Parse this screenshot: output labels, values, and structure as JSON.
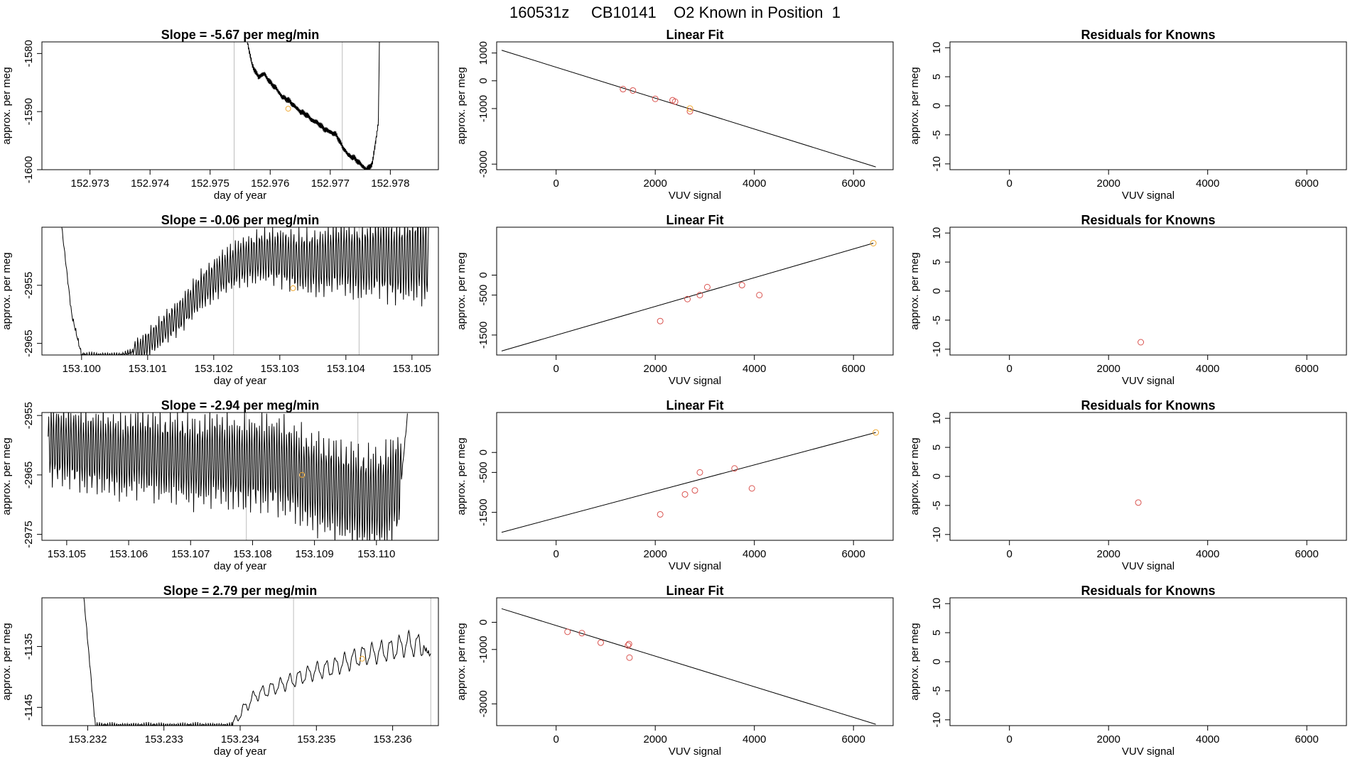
{
  "title": "160531z     CB10141    O2 Known in Position  1",
  "colors": {
    "line": "#000000",
    "frame": "#000000",
    "point": "#d9534f",
    "highlight": "#f0a830",
    "vline": "#bdbdbd"
  },
  "rows": [
    {
      "timeseries": {
        "title": "Slope =  -5.67  per meg/min",
        "xlabel": "day of year",
        "ylabel": "approx. per meg",
        "xlim": [
          152.9722,
          152.9788
        ],
        "ylim": [
          -1600,
          -1578
        ],
        "xticks": [
          152.973,
          152.974,
          152.975,
          152.976,
          152.977,
          152.978
        ],
        "xtick_labels": [
          "152.973",
          "152.974",
          "152.975",
          "152.976",
          "152.977",
          "152.978"
        ],
        "yticks": [
          -1580,
          -1590,
          -1600
        ],
        "ytick_labels": [
          "-1580",
          "-1590",
          "-1600"
        ],
        "vlines": [
          152.9754,
          152.9772
        ],
        "highlight": [
          152.9763,
          -1589.5
        ],
        "series": {
          "x": [
            152.9756,
            152.9757,
            152.9758,
            152.9759,
            152.976,
            152.9761,
            152.9762,
            152.9763,
            152.9764,
            152.9765,
            152.9766,
            152.9767,
            152.9768,
            152.9769,
            152.977,
            152.9771,
            152.9772,
            152.9773,
            152.9774,
            152.9775,
            152.9776,
            152.9777,
            152.9778,
            152.97782
          ],
          "y": [
            -1577,
            -1582,
            -1584,
            -1583.5,
            -1585,
            -1586,
            -1587.5,
            -1588,
            -1589,
            -1590,
            -1590.5,
            -1591.5,
            -1592,
            -1593,
            -1593.5,
            -1594,
            -1596,
            -1597.5,
            -1598,
            -1599,
            -1600,
            -1599,
            -1592,
            -1577
          ]
        }
      },
      "linear_fit": {
        "title": "Linear Fit",
        "xlabel": "VUV signal",
        "ylabel": "approx. per meg",
        "xlim": [
          -1200,
          6800
        ],
        "ylim": [
          -3200,
          1400
        ],
        "xticks": [
          0,
          2000,
          4000,
          6000
        ],
        "xtick_labels": [
          "0",
          "2000",
          "4000",
          "6000"
        ],
        "yticks": [
          1000,
          0,
          -1000,
          -3000
        ],
        "ytick_labels": [
          "1000",
          "0",
          "-1000",
          "-3000"
        ],
        "line": [
          [
            -1100,
            1100
          ],
          [
            6450,
            -3100
          ]
        ],
        "points": [
          [
            1350,
            -300
          ],
          [
            1550,
            -350
          ],
          [
            2000,
            -650
          ],
          [
            2350,
            -700
          ],
          [
            2400,
            -750
          ],
          [
            2700,
            -1100
          ]
        ],
        "highlight_points": [
          [
            2700,
            -1000
          ]
        ]
      },
      "residuals": {
        "title": "Residuals for Knowns",
        "xlabel": "VUV signal",
        "ylabel": "approx. per meg",
        "xlim": [
          -1200,
          6800
        ],
        "ylim": [
          -11,
          11
        ],
        "xticks": [
          0,
          2000,
          4000,
          6000
        ],
        "xtick_labels": [
          "0",
          "2000",
          "4000",
          "6000"
        ],
        "yticks": [
          10,
          5,
          0,
          -5,
          -10
        ],
        "ytick_labels": [
          "10",
          "5",
          "0",
          "-5",
          "-10"
        ],
        "points": []
      }
    },
    {
      "timeseries": {
        "title": "Slope =  -0.06  per meg/min",
        "xlabel": "day of year",
        "ylabel": "approx. per meg",
        "xlim": [
          153.0994,
          153.1054
        ],
        "ylim": [
          -2967,
          -2945
        ],
        "xticks": [
          153.1,
          153.101,
          153.102,
          153.103,
          153.104,
          153.105
        ],
        "xtick_labels": [
          "153.100",
          "153.101",
          "153.102",
          "153.103",
          "153.104",
          "153.105"
        ],
        "yticks": [
          -2955,
          -2965
        ],
        "ytick_labels": [
          "-2955",
          "-2965"
        ],
        "vlines": [
          153.1023,
          153.1042
        ],
        "highlight": [
          153.1032,
          -2955.5
        ],
        "series": {
          "x": [
            153.0997,
            153.09985,
            153.1,
            153.1003,
            153.1006,
            153.1009,
            153.1012,
            153.1015,
            153.1018,
            153.1021,
            153.1024,
            153.1027,
            153.103,
            153.1033,
            153.1036,
            153.1039,
            153.1042,
            153.1045,
            153.1048,
            153.1051,
            153.10525
          ],
          "y": [
            -2945,
            -2960,
            -2967,
            -2967,
            -2967,
            -2966,
            -2963,
            -2960,
            -2956,
            -2953,
            -2951,
            -2950,
            -2950,
            -2951,
            -2951,
            -2950,
            -2951,
            -2950,
            -2951,
            -2950,
            -2951
          ]
        },
        "oscillation": {
          "start": 153.1008,
          "end": 153.10525,
          "period": 4e-05,
          "amp_start": 2,
          "amp_end": 7
        }
      },
      "linear_fit": {
        "title": "Linear Fit",
        "xlabel": "VUV signal",
        "ylabel": "approx. per meg",
        "xlim": [
          -1200,
          6800
        ],
        "ylim": [
          -2000,
          1200
        ],
        "xticks": [
          0,
          2000,
          4000,
          6000
        ],
        "xtick_labels": [
          "0",
          "2000",
          "4000",
          "6000"
        ],
        "yticks": [
          0,
          -500,
          -1500
        ],
        "ytick_labels": [
          "0",
          "-500",
          "-1500"
        ],
        "line": [
          [
            -1100,
            -1900
          ],
          [
            6400,
            800
          ]
        ],
        "points": [
          [
            2100,
            -1150
          ],
          [
            2650,
            -600
          ],
          [
            2900,
            -500
          ],
          [
            3050,
            -300
          ],
          [
            3750,
            -250
          ],
          [
            4100,
            -500
          ]
        ],
        "highlight_points": [
          [
            6400,
            800
          ]
        ]
      },
      "residuals": {
        "title": "Residuals for Knowns",
        "xlabel": "VUV signal",
        "ylabel": "approx. per meg",
        "xlim": [
          -1200,
          6800
        ],
        "ylim": [
          -11,
          11
        ],
        "xticks": [
          0,
          2000,
          4000,
          6000
        ],
        "xtick_labels": [
          "0",
          "2000",
          "4000",
          "6000"
        ],
        "yticks": [
          10,
          5,
          0,
          -5,
          -10
        ],
        "ytick_labels": [
          "10",
          "5",
          "0",
          "-5",
          "-10"
        ],
        "points": [
          [
            2650,
            -8.8
          ]
        ]
      }
    },
    {
      "timeseries": {
        "title": "Slope =  -2.94  per meg/min",
        "xlabel": "day of year",
        "ylabel": "approx. per meg",
        "xlim": [
          153.1046,
          153.111
        ],
        "ylim": [
          -2976,
          -2954.5
        ],
        "xticks": [
          153.105,
          153.106,
          153.107,
          153.108,
          153.109,
          153.11
        ],
        "xtick_labels": [
          "153.105",
          "153.106",
          "153.107",
          "153.108",
          "153.109",
          "153.110"
        ],
        "yticks": [
          -2955,
          -2965,
          -2975
        ],
        "ytick_labels": [
          "-2955",
          "-2965",
          "-2975"
        ],
        "vlines": [
          153.1079,
          153.1097
        ],
        "highlight": [
          153.1088,
          -2965
        ],
        "series": {
          "x": [
            153.1047,
            153.105,
            153.1053,
            153.1056,
            153.1059,
            153.1062,
            153.1065,
            153.1068,
            153.1071,
            153.1074,
            153.1077,
            153.108,
            153.1083,
            153.1086,
            153.1089,
            153.1092,
            153.1095,
            153.1098,
            153.1101,
            153.1104,
            153.1105
          ],
          "y": [
            -2960,
            -2960,
            -2961,
            -2961,
            -2962,
            -2961,
            -2962,
            -2962,
            -2963,
            -2962,
            -2963,
            -2963,
            -2963,
            -2964,
            -2966,
            -2967,
            -2968,
            -2969,
            -2969,
            -2966,
            -2955
          ]
        },
        "oscillation": {
          "start": 153.1047,
          "end": 153.1104,
          "period": 4e-05,
          "amp_start": 6,
          "amp_end": 8
        }
      },
      "linear_fit": {
        "title": "Linear Fit",
        "xlabel": "VUV signal",
        "ylabel": "approx. per meg",
        "xlim": [
          -1200,
          6800
        ],
        "ylim": [
          -2200,
          1000
        ],
        "xticks": [
          0,
          2000,
          4000,
          6000
        ],
        "xtick_labels": [
          "0",
          "2000",
          "4000",
          "6000"
        ],
        "yticks": [
          0,
          -500,
          -1500
        ],
        "ytick_labels": [
          "0",
          "-500",
          "-1500"
        ],
        "line": [
          [
            -1100,
            -2000
          ],
          [
            6450,
            500
          ]
        ],
        "points": [
          [
            2100,
            -1550
          ],
          [
            2600,
            -1050
          ],
          [
            2800,
            -950
          ],
          [
            2900,
            -500
          ],
          [
            3600,
            -400
          ],
          [
            3950,
            -900
          ]
        ],
        "highlight_points": [
          [
            6450,
            500
          ]
        ]
      },
      "residuals": {
        "title": "Residuals for Knowns",
        "xlabel": "VUV signal",
        "ylabel": "approx. per meg",
        "xlim": [
          -1200,
          6800
        ],
        "ylim": [
          -11,
          11
        ],
        "xticks": [
          0,
          2000,
          4000,
          6000
        ],
        "xtick_labels": [
          "0",
          "2000",
          "4000",
          "6000"
        ],
        "yticks": [
          10,
          5,
          0,
          -5,
          -10
        ],
        "ytick_labels": [
          "10",
          "5",
          "0",
          "-5",
          "-10"
        ],
        "points": [
          [
            2600,
            -4.5
          ]
        ]
      }
    },
    {
      "timeseries": {
        "title": "Slope =  2.79  per meg/min",
        "xlabel": "day of year",
        "ylabel": "approx. per meg",
        "xlim": [
          153.2314,
          153.2366
        ],
        "ylim": [
          -1148,
          -1127
        ],
        "xticks": [
          153.232,
          153.233,
          153.234,
          153.235,
          153.236
        ],
        "xtick_labels": [
          "153.232",
          "153.233",
          "153.234",
          "153.235",
          "153.236"
        ],
        "yticks": [
          -1135,
          -1145
        ],
        "ytick_labels": [
          "-1135",
          "-1145"
        ],
        "vlines": [
          153.2347,
          153.2365
        ],
        "highlight": [
          153.2356,
          -1137
        ],
        "series": {
          "x": [
            153.23195,
            153.2321,
            153.2339,
            153.234,
            153.2342,
            153.2344,
            153.2346,
            153.2348,
            153.235,
            153.2352,
            153.2354,
            153.2356,
            153.2358,
            153.236,
            153.2362,
            153.2364,
            153.2365
          ],
          "y": [
            -1127,
            -1148,
            -1148,
            -1146,
            -1143,
            -1142,
            -1141,
            -1140,
            -1139,
            -1138.5,
            -1137.5,
            -1136.5,
            -1136,
            -1135.5,
            -1134.5,
            -1135,
            -1136.5
          ]
        },
        "oscillation": {
          "start": 153.2339,
          "end": 153.2364,
          "period": 0.00012,
          "amp_start": 0.8,
          "amp_end": 1.8
        }
      },
      "linear_fit": {
        "title": "Linear Fit",
        "xlabel": "VUV signal",
        "ylabel": "approx. per meg",
        "xlim": [
          -1200,
          6800
        ],
        "ylim": [
          -3800,
          900
        ],
        "xticks": [
          0,
          2000,
          4000,
          6000
        ],
        "xtick_labels": [
          "0",
          "2000",
          "4000",
          "6000"
        ],
        "yticks": [
          0,
          -1000,
          -3000
        ],
        "ytick_labels": [
          "0",
          "-1000",
          "-3000"
        ],
        "line": [
          [
            -1100,
            500
          ],
          [
            6450,
            -3750
          ]
        ],
        "points": [
          [
            230,
            -350
          ],
          [
            520,
            -400
          ],
          [
            900,
            -750
          ],
          [
            1450,
            -850
          ],
          [
            1470,
            -800
          ],
          [
            1480,
            -1300
          ]
        ],
        "highlight_points": []
      },
      "residuals": {
        "title": "Residuals for Knowns",
        "xlabel": "VUV signal",
        "ylabel": "approx. per meg",
        "xlim": [
          -1200,
          6800
        ],
        "ylim": [
          -11,
          11
        ],
        "xticks": [
          0,
          2000,
          4000,
          6000
        ],
        "xtick_labels": [
          "0",
          "2000",
          "4000",
          "6000"
        ],
        "yticks": [
          10,
          5,
          0,
          -5,
          -10
        ],
        "ytick_labels": [
          "10",
          "5",
          "0",
          "-5",
          "-10"
        ],
        "points": []
      }
    }
  ],
  "chart_data": [
    {
      "type": "line",
      "title": "Slope =  -5.67  per meg/min",
      "xlabel": "day of year",
      "ylabel": "approx. per meg",
      "xlim": [
        152.9722,
        152.9788
      ],
      "ylim": [
        -1600,
        -1578
      ]
    },
    {
      "type": "scatter",
      "title": "Linear Fit",
      "xlabel": "VUV signal",
      "ylabel": "approx. per meg",
      "xlim": [
        -1200,
        6800
      ],
      "ylim": [
        -3200,
        1400
      ]
    },
    {
      "type": "scatter",
      "title": "Residuals for Knowns",
      "xlabel": "VUV signal",
      "ylabel": "approx. per meg",
      "xlim": [
        -1200,
        6800
      ],
      "ylim": [
        -11,
        11
      ]
    },
    {
      "type": "line",
      "title": "Slope =  -0.06  per meg/min",
      "xlabel": "day of year",
      "ylabel": "approx. per meg",
      "xlim": [
        153.0994,
        153.1054
      ],
      "ylim": [
        -2967,
        -2945
      ]
    },
    {
      "type": "scatter",
      "title": "Linear Fit",
      "xlabel": "VUV signal",
      "ylabel": "approx. per meg",
      "xlim": [
        -1200,
        6800
      ],
      "ylim": [
        -2000,
        1200
      ]
    },
    {
      "type": "scatter",
      "title": "Residuals for Knowns",
      "xlabel": "VUV signal",
      "ylabel": "approx. per meg",
      "xlim": [
        -1200,
        6800
      ],
      "ylim": [
        -11,
        11
      ]
    },
    {
      "type": "line",
      "title": "Slope =  -2.94  per meg/min",
      "xlabel": "day of year",
      "ylabel": "approx. per meg",
      "xlim": [
        153.1046,
        153.111
      ],
      "ylim": [
        -2976,
        -2954.5
      ]
    },
    {
      "type": "scatter",
      "title": "Linear Fit",
      "xlabel": "VUV signal",
      "ylabel": "approx. per meg",
      "xlim": [
        -1200,
        6800
      ],
      "ylim": [
        -2200,
        1000
      ]
    },
    {
      "type": "scatter",
      "title": "Residuals for Knowns",
      "xlabel": "VUV signal",
      "ylabel": "approx. per meg",
      "xlim": [
        -1200,
        6800
      ],
      "ylim": [
        -11,
        11
      ]
    },
    {
      "type": "line",
      "title": "Slope =  2.79  per meg/min",
      "xlabel": "day of year",
      "ylabel": "approx. per meg",
      "xlim": [
        153.2314,
        153.2366
      ],
      "ylim": [
        -1148,
        -1127
      ]
    },
    {
      "type": "scatter",
      "title": "Linear Fit",
      "xlabel": "VUV signal",
      "ylabel": "approx. per meg",
      "xlim": [
        -1200,
        6800
      ],
      "ylim": [
        -3800,
        900
      ]
    },
    {
      "type": "scatter",
      "title": "Residuals for Knowns",
      "xlabel": "VUV signal",
      "ylabel": "approx. per meg",
      "xlim": [
        -1200,
        6800
      ],
      "ylim": [
        -11,
        11
      ]
    }
  ]
}
